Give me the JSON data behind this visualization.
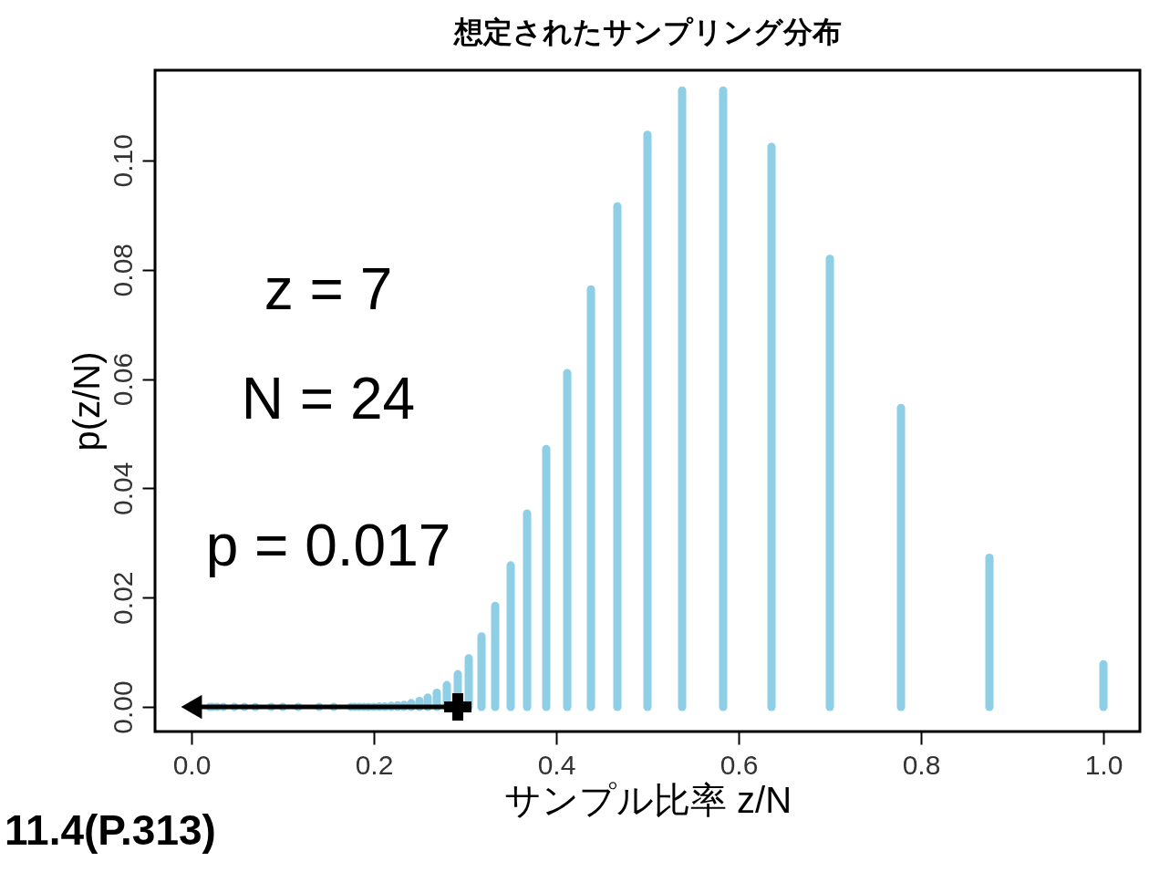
{
  "chart_data": {
    "type": "bar",
    "title": "想定されたサンプリング分布",
    "xlabel": "サンプル比率 z/N",
    "ylabel": "p(z/N)",
    "annotations": [
      "z = 7",
      "N = 24",
      "p = 0.017",
      "11.4(P.313)"
    ],
    "xlim": [
      -0.04,
      1.04
    ],
    "ylim": [
      -0.0045,
      0.1165
    ],
    "xticks": [
      {
        "value": 0,
        "label": "0.0"
      },
      {
        "value": 0.2,
        "label": "0.2"
      },
      {
        "value": 0.4,
        "label": "0.4"
      },
      {
        "value": 0.6,
        "label": "0.6"
      },
      {
        "value": 0.8,
        "label": "0.8"
      },
      {
        "value": 1.0,
        "label": "1.0"
      }
    ],
    "yticks": [
      {
        "value": 0,
        "label": "0.00"
      },
      {
        "value": 0.02,
        "label": "0.02"
      },
      {
        "value": 0.04,
        "label": "0.04"
      },
      {
        "value": 0.06,
        "label": "0.06"
      },
      {
        "value": 0.08,
        "label": "0.08"
      },
      {
        "value": 0.1,
        "label": "0.10"
      }
    ],
    "grid": false,
    "series": [
      {
        "color": "#8ecfe6",
        "x": [
          1.0,
          0.875,
          0.778,
          0.7,
          0.636,
          0.583,
          0.538,
          0.5,
          0.467,
          0.438,
          0.412,
          0.389,
          0.368,
          0.35,
          0.333,
          0.318,
          0.304,
          0.292,
          0.28,
          0.269,
          0.259,
          0.25,
          0.241,
          0.233,
          0.226,
          0.219,
          0.212,
          0.206,
          0.2,
          0.194,
          0.189,
          0.184,
          0.179,
          0.175,
          0.156,
          0.14,
          0.117,
          0.1,
          0.0875,
          0.07,
          0.058,
          0.047,
          0.035,
          0.028,
          0.023,
          0.02
        ],
        "values": [
          0.0078,
          0.0273,
          0.0547,
          0.082,
          0.1025,
          0.1128,
          0.1128,
          0.1047,
          0.0916,
          0.0764,
          0.0611,
          0.0472,
          0.0354,
          0.0259,
          0.0185,
          0.0129,
          0.0089,
          0.006,
          0.004,
          0.0026,
          0.0017,
          0.0011,
          0.0007,
          0.0004,
          0.0003,
          0.0002,
          0.0001,
          0.0001,
          0,
          0,
          0,
          0,
          0,
          0,
          0,
          0,
          0,
          0,
          0,
          0,
          0,
          0,
          0,
          0,
          0,
          0
        ]
      },
      {
        "type": "scatter",
        "marker": "cross",
        "color": "#000000",
        "x": [
          0.292
        ],
        "values": [
          0
        ]
      },
      {
        "type": "line",
        "line_style": "solid",
        "color": "#000000",
        "x": [
          0.292,
          0.0
        ],
        "values": [
          0,
          0
        ]
      }
    ]
  }
}
